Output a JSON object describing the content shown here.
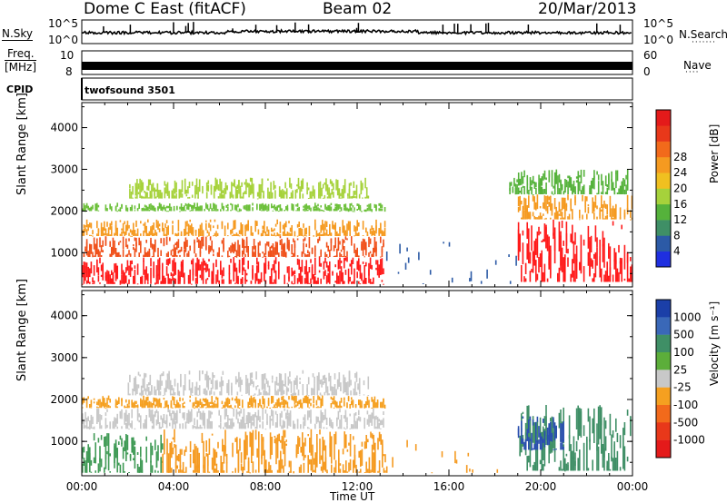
{
  "header": {
    "radar": "Dome C East (fitACF)",
    "beam": "Beam 02",
    "date": "20/Mar/2013"
  },
  "strips": {
    "nsky_label": "N.Sky",
    "nsearch_label": "N.Search",
    "noise_ticks": [
      "10^5",
      "10^0"
    ],
    "freq_label": "Freq.",
    "freq_unit": "[MHz]",
    "freq_ticks": [
      "10",
      "8"
    ],
    "nave_label": "Nave",
    "nave_ticks": [
      "60",
      "0"
    ],
    "cpid_label": "CPID",
    "cpid_value": "twofsound 3501"
  },
  "chart_data": [
    {
      "type": "heatmap",
      "panel": "power",
      "ylabel": "Slant Range [km]",
      "ylim": [
        180,
        4600
      ],
      "yticks": [
        1000,
        2000,
        3000,
        4000
      ],
      "xlim_hours": [
        0,
        24
      ],
      "colorbar_label": "Power [dB]",
      "colorbar_ticks": [
        "4",
        "8",
        "12",
        "16",
        "20",
        "24",
        "28"
      ],
      "colorbar_colors": [
        "#1f2fe0",
        "#2c5aa6",
        "#3f8f66",
        "#55b23b",
        "#a6d23b",
        "#f0c020",
        "#f59a20",
        "#f26a1b",
        "#e8381a",
        "#e41a1a"
      ],
      "echo_regions": [
        {
          "t": [
            0.0,
            13.2
          ],
          "r": [
            250,
            900
          ],
          "color": "#ff1a1a"
        },
        {
          "t": [
            0.0,
            13.2
          ],
          "r": [
            900,
            1400
          ],
          "color": "#f0501a"
        },
        {
          "t": [
            0.0,
            13.2
          ],
          "r": [
            1400,
            1800
          ],
          "color": "#f59a20"
        },
        {
          "t": [
            0.0,
            13.2
          ],
          "r": [
            2000,
            2200
          ],
          "color": "#6cc03a"
        },
        {
          "t": [
            2.0,
            12.5
          ],
          "r": [
            2300,
            2800
          ],
          "color": "#a6d23b"
        },
        {
          "t": [
            19.0,
            24.0
          ],
          "r": [
            300,
            1800
          ],
          "color": "#ff1a1a"
        },
        {
          "t": [
            19.0,
            24.0
          ],
          "r": [
            1800,
            2400
          ],
          "color": "#f59a20"
        },
        {
          "t": [
            18.5,
            24.0
          ],
          "r": [
            2400,
            3000
          ],
          "color": "#55b23b"
        },
        {
          "t": [
            13.2,
            19.0
          ],
          "r": [
            250,
            1300
          ],
          "color": "#2c5aa6"
        }
      ]
    },
    {
      "type": "heatmap",
      "panel": "velocity",
      "ylabel": "Slant Range [km]",
      "xlabel": "Time UT",
      "ylim": [
        180,
        4600
      ],
      "yticks": [
        1000,
        2000,
        3000,
        4000
      ],
      "xlim_hours": [
        0,
        24
      ],
      "xticks": [
        "00:00",
        "04:00",
        "08:00",
        "12:00",
        "16:00",
        "20:00",
        "00:00"
      ],
      "colorbar_label": "Velocity [m s⁻¹]",
      "colorbar_ticks": [
        "1000",
        "500",
        "100",
        "25",
        "-25",
        "-100",
        "-500",
        "-1000"
      ],
      "colorbar_colors": [
        "#1b3fa8",
        "#3a68b8",
        "#3f8f66",
        "#5cae3a",
        "#c8c8c8",
        "#f5a020",
        "#f26a1b",
        "#e8381a",
        "#e41a1a"
      ],
      "echo_regions": [
        {
          "t": [
            0.0,
            3.5
          ],
          "r": [
            250,
            1200
          ],
          "color": "#3f9a55"
        },
        {
          "t": [
            3.5,
            13.2
          ],
          "r": [
            250,
            1300
          ],
          "color": "#f59a20"
        },
        {
          "t": [
            0.0,
            13.2
          ],
          "r": [
            1300,
            1800
          ],
          "color": "#c8c8c8"
        },
        {
          "t": [
            0.0,
            13.2
          ],
          "r": [
            1800,
            2100
          ],
          "color": "#f5a020"
        },
        {
          "t": [
            2.0,
            12.5
          ],
          "r": [
            2100,
            2700
          ],
          "color": "#c8c8c8"
        },
        {
          "t": [
            19.0,
            24.0
          ],
          "r": [
            300,
            1900
          ],
          "color": "#3f8f66"
        },
        {
          "t": [
            19.0,
            21.0
          ],
          "r": [
            800,
            1600
          ],
          "color": "#2a4fae"
        },
        {
          "t": [
            13.2,
            19.0
          ],
          "r": [
            250,
            1300
          ],
          "color": "#f59a20"
        }
      ]
    }
  ]
}
